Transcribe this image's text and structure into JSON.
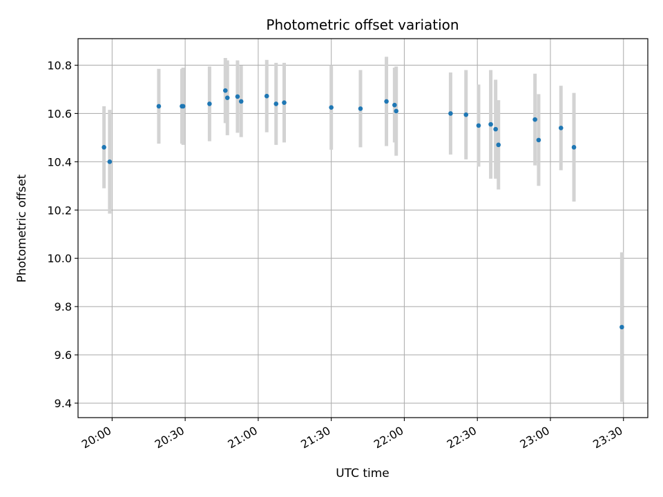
{
  "chart_data": {
    "type": "scatter",
    "title": "Photometric offset variation",
    "xlabel": "UTC time",
    "ylabel": "Photometric offset",
    "grid": true,
    "ylim": [
      9.34,
      10.91
    ],
    "xlim": [
      "19:46",
      "23:40"
    ],
    "x_ticks": [
      "20:00",
      "20:30",
      "21:00",
      "21:30",
      "22:00",
      "22:30",
      "23:00",
      "23:30"
    ],
    "y_ticks": [
      "9.4",
      "9.6",
      "9.8",
      "10.0",
      "10.2",
      "10.4",
      "10.6",
      "10.8"
    ],
    "marker_color": "#1f77b4",
    "errorbar_color": "#d3d3d3",
    "points": [
      {
        "time": "19:56:40",
        "y": 10.46,
        "err": 0.17
      },
      {
        "time": "19:59:00",
        "y": 10.4,
        "err": 0.215
      },
      {
        "time": "20:19:10",
        "y": 10.63,
        "err": 0.155
      },
      {
        "time": "20:28:40",
        "y": 10.63,
        "err": 0.155
      },
      {
        "time": "20:29:10",
        "y": 10.63,
        "err": 0.16
      },
      {
        "time": "20:40:00",
        "y": 10.64,
        "err": 0.155
      },
      {
        "time": "20:46:30",
        "y": 10.695,
        "err": 0.135
      },
      {
        "time": "20:47:20",
        "y": 10.665,
        "err": 0.155
      },
      {
        "time": "20:51:30",
        "y": 10.67,
        "err": 0.15
      },
      {
        "time": "20:53:00",
        "y": 10.65,
        "err": 0.148
      },
      {
        "time": "21:03:30",
        "y": 10.672,
        "err": 0.15
      },
      {
        "time": "21:07:20",
        "y": 10.64,
        "err": 0.17
      },
      {
        "time": "21:10:40",
        "y": 10.645,
        "err": 0.165
      },
      {
        "time": "21:30:00",
        "y": 10.625,
        "err": 0.175
      },
      {
        "time": "21:42:00",
        "y": 10.62,
        "err": 0.16
      },
      {
        "time": "21:52:40",
        "y": 10.65,
        "err": 0.185
      },
      {
        "time": "21:56:00",
        "y": 10.635,
        "err": 0.155
      },
      {
        "time": "21:56:40",
        "y": 10.61,
        "err": 0.185
      },
      {
        "time": "22:19:00",
        "y": 10.6,
        "err": 0.17
      },
      {
        "time": "22:25:20",
        "y": 10.595,
        "err": 0.185
      },
      {
        "time": "22:30:30",
        "y": 10.55,
        "err": 0.17
      },
      {
        "time": "22:35:30",
        "y": 10.555,
        "err": 0.225
      },
      {
        "time": "22:37:30",
        "y": 10.535,
        "err": 0.205
      },
      {
        "time": "22:38:40",
        "y": 10.47,
        "err": 0.185
      },
      {
        "time": "22:53:40",
        "y": 10.575,
        "err": 0.19
      },
      {
        "time": "22:55:10",
        "y": 10.49,
        "err": 0.19
      },
      {
        "time": "23:04:20",
        "y": 10.54,
        "err": 0.175
      },
      {
        "time": "23:09:40",
        "y": 10.46,
        "err": 0.225
      },
      {
        "time": "23:29:20",
        "y": 9.715,
        "err": 0.31
      }
    ]
  }
}
